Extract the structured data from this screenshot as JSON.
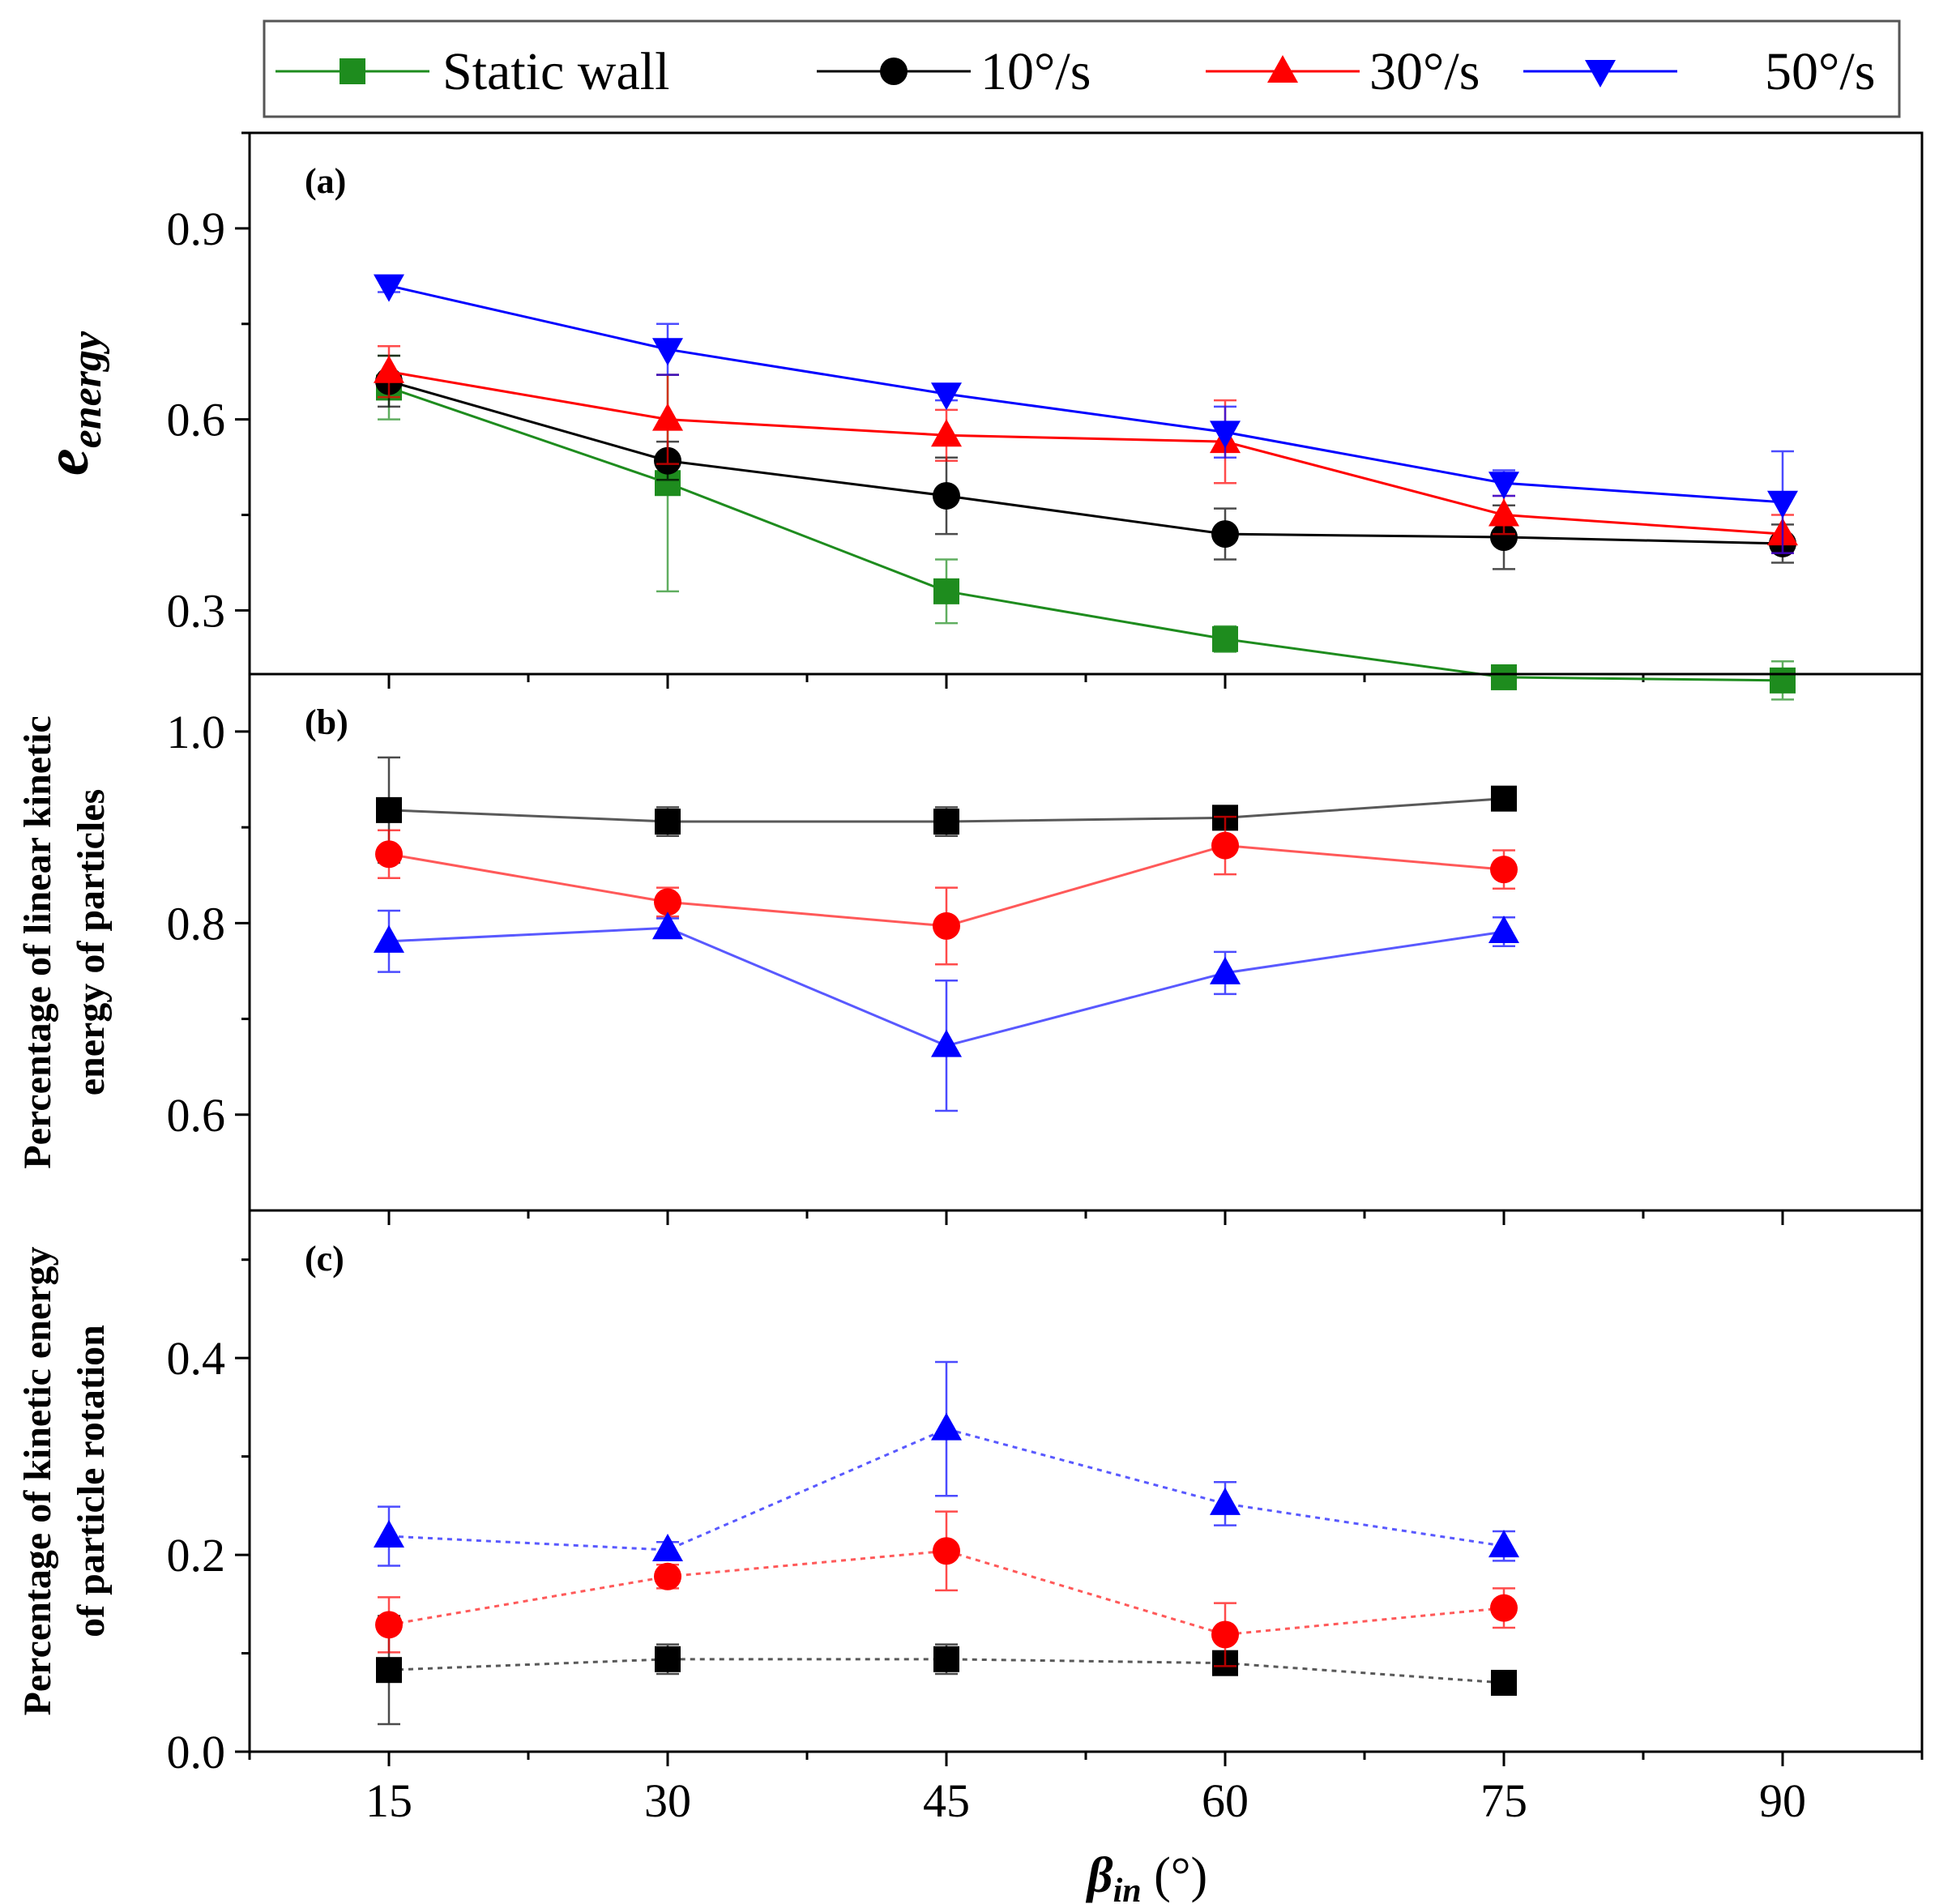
{
  "legend": {
    "entries": [
      {
        "label": "Static wall",
        "color": "#1e8c1e",
        "marker": "square"
      },
      {
        "label": "10°/s",
        "color": "#000000",
        "marker": "circle"
      },
      {
        "label": "30°/s",
        "color": "#ff0000",
        "marker": "triangle-up"
      },
      {
        "label": "50°/s",
        "color": "#0000ff",
        "marker": "triangle-down"
      }
    ]
  },
  "x_axis": {
    "label_main": "β",
    "label_sub": "in",
    "label_unit": " (°)",
    "ticks": [
      15,
      30,
      45,
      60,
      75,
      90
    ],
    "range": [
      7.5,
      97.5
    ]
  },
  "chart_data": [
    {
      "type": "line",
      "panel_label": "(a)",
      "ylabel_main": "e",
      "ylabel_sub": "energy",
      "ylim": [
        0.2,
        1.05
      ],
      "yticks": [
        0.3,
        0.6,
        0.9
      ],
      "x": [
        15,
        30,
        45,
        60,
        75,
        90
      ],
      "series": [
        {
          "name": "Static wall",
          "color": "#1e8c1e",
          "marker": "square",
          "line": "solid",
          "values": [
            0.65,
            0.5,
            0.33,
            0.255,
            0.195,
            0.19
          ],
          "errors": [
            0.05,
            0.17,
            0.05,
            0.02,
            0.015,
            0.03
          ]
        },
        {
          "name": "10°/s",
          "color": "#000000",
          "marker": "circle",
          "line": "solid",
          "values": [
            0.66,
            0.535,
            0.48,
            0.42,
            0.415,
            0.405
          ],
          "errors": [
            0.04,
            0.03,
            0.06,
            0.04,
            0.05,
            0.03
          ]
        },
        {
          "name": "30°/s",
          "color": "#ff0000",
          "marker": "triangle-up",
          "line": "solid",
          "values": [
            0.675,
            0.6,
            0.575,
            0.565,
            0.45,
            0.42
          ],
          "errors": [
            0.04,
            0.07,
            0.04,
            0.065,
            0.03,
            0.03
          ]
        },
        {
          "name": "50°/s",
          "color": "#0000ff",
          "marker": "triangle-down",
          "line": "solid",
          "values": [
            0.81,
            0.71,
            0.64,
            0.58,
            0.5,
            0.47
          ],
          "errors": [
            0.01,
            0.04,
            0.01,
            0.04,
            0.02,
            0.08
          ]
        }
      ]
    },
    {
      "type": "line",
      "panel_label": "(b)",
      "ylabel_lines": [
        "Percentage of linear kinetic",
        "energy of particles"
      ],
      "ylim": [
        0.5,
        1.06
      ],
      "yticks": [
        0.6,
        0.8,
        1.0
      ],
      "ytick_decimals": 1,
      "x": [
        15,
        30,
        45,
        60,
        75
      ],
      "series": [
        {
          "name": "10°/s",
          "color": "#000000",
          "marker": "square",
          "line": "solid",
          "values": [
            0.918,
            0.906,
            0.906,
            0.91,
            0.93
          ],
          "errors": [
            0.055,
            0.015,
            0.015,
            0.01,
            0.01
          ]
        },
        {
          "name": "30°/s",
          "color": "#ff0000",
          "marker": "circle",
          "line": "solid",
          "values": [
            0.872,
            0.822,
            0.797,
            0.881,
            0.856
          ],
          "errors": [
            0.025,
            0.015,
            0.04,
            0.03,
            0.02
          ]
        },
        {
          "name": "50°/s",
          "color": "#0000ff",
          "marker": "triangle-up",
          "line": "solid",
          "values": [
            0.781,
            0.795,
            0.672,
            0.748,
            0.791
          ],
          "errors": [
            0.032,
            0.01,
            0.068,
            0.022,
            0.015
          ]
        }
      ]
    },
    {
      "type": "line",
      "panel_label": "(c)",
      "ylabel_lines": [
        "Percentage of kinetic energy",
        "of particle rotation"
      ],
      "ylim": [
        0,
        0.55
      ],
      "yticks": [
        0.0,
        0.2,
        0.4
      ],
      "ytick_decimals": 1,
      "x": [
        15,
        30,
        45,
        60,
        75
      ],
      "series": [
        {
          "name": "10°/s",
          "color": "#000000",
          "marker": "square",
          "line": "dotted",
          "values": [
            0.083,
            0.094,
            0.094,
            0.09,
            0.07
          ],
          "errors": [
            0.055,
            0.015,
            0.015,
            0.01,
            0.01
          ]
        },
        {
          "name": "30°/s",
          "color": "#ff0000",
          "marker": "circle",
          "line": "dotted",
          "values": [
            0.129,
            0.178,
            0.204,
            0.119,
            0.146
          ],
          "errors": [
            0.028,
            0.012,
            0.04,
            0.032,
            0.02
          ]
        },
        {
          "name": "50°/s",
          "color": "#0000ff",
          "marker": "triangle-up",
          "line": "dotted",
          "values": [
            0.219,
            0.205,
            0.328,
            0.252,
            0.209
          ],
          "errors": [
            0.03,
            0.008,
            0.068,
            0.022,
            0.015
          ]
        }
      ]
    }
  ]
}
